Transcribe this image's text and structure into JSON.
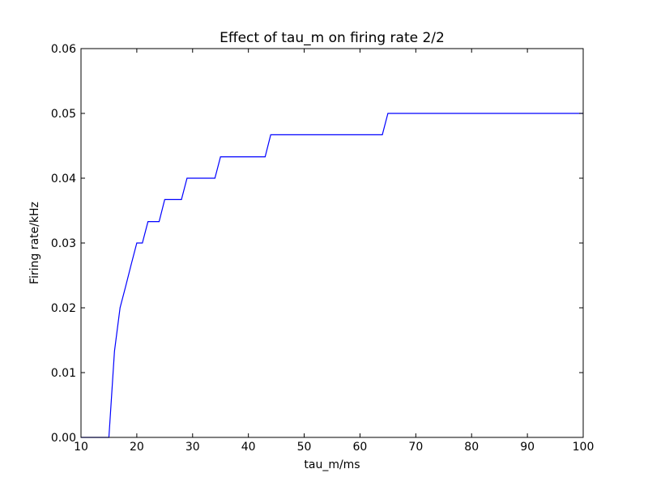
{
  "chart_data": {
    "type": "line",
    "title": "Effect of tau_m on firing rate 2/2",
    "xlabel": "tau_m/ms",
    "ylabel": "Firing rate/kHz",
    "xlim": [
      10,
      100
    ],
    "ylim": [
      0,
      0.06
    ],
    "xticks": [
      10,
      20,
      30,
      40,
      50,
      60,
      70,
      80,
      90,
      100
    ],
    "xtick_labels": [
      "10",
      "20",
      "30",
      "40",
      "50",
      "60",
      "70",
      "80",
      "90",
      "100"
    ],
    "yticks": [
      0,
      0.01,
      0.02,
      0.03,
      0.04,
      0.05,
      0.06
    ],
    "ytick_labels": [
      "0.00",
      "0.01",
      "0.02",
      "0.03",
      "0.04",
      "0.05",
      "0.06"
    ],
    "grid": false,
    "series": [
      {
        "color": "#0000ff",
        "x": [
          10,
          15,
          16,
          17,
          18,
          19,
          20,
          21,
          22,
          23,
          24,
          25,
          26,
          27,
          28,
          29,
          30,
          34,
          35,
          43,
          44,
          64,
          65,
          100
        ],
        "y": [
          0,
          0,
          0.0133,
          0.02,
          0.0233,
          0.0267,
          0.03,
          0.03,
          0.0333,
          0.0333,
          0.0333,
          0.0367,
          0.0367,
          0.0367,
          0.0367,
          0.04,
          0.04,
          0.04,
          0.0433,
          0.0433,
          0.0467,
          0.0467,
          0.05,
          0.05
        ]
      }
    ]
  }
}
